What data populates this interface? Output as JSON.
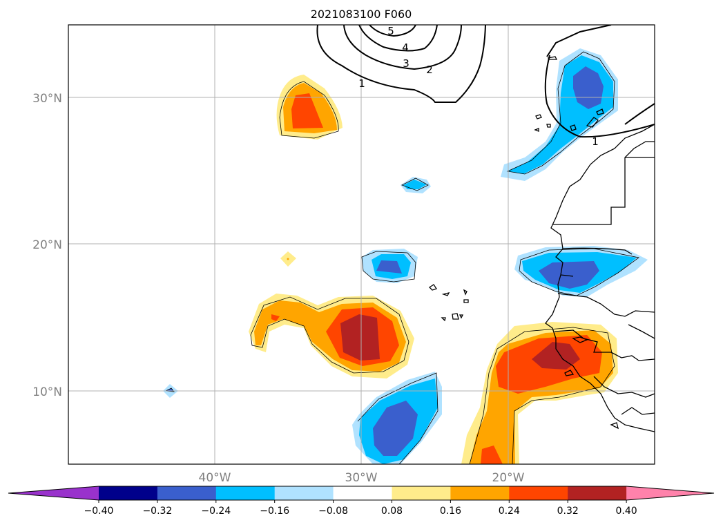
{
  "title": "2021083100 F060",
  "lat_labels": [
    "30°N",
    "20°N",
    "10°N"
  ],
  "lon_labels": [
    "40°W",
    "30°W",
    "20°W"
  ],
  "contour_labels": [
    "5",
    "4",
    "3",
    "2",
    "1",
    "1"
  ],
  "colorbar": {
    "tick_labels": [
      "−0.40",
      "−0.32",
      "−0.24",
      "−0.16",
      "−0.08",
      "0.08",
      "0.16",
      "0.24",
      "0.32",
      "0.40"
    ],
    "colors": [
      "#9932cc",
      "#00008b",
      "#3a5fcd",
      "#00bfff",
      "#b0e2ff",
      "#ffffff",
      "#ffec8b",
      "#ffa500",
      "#ff4500",
      "#b22222",
      "#ff82ab"
    ]
  },
  "palette": {
    "light_yellow": "#ffec8b",
    "orange": "#ffa500",
    "red_orange": "#ff4500",
    "dark_red": "#b22222",
    "light_blue": "#b0e2ff",
    "sky_blue": "#00bfff",
    "blue": "#3a5fcd"
  }
}
